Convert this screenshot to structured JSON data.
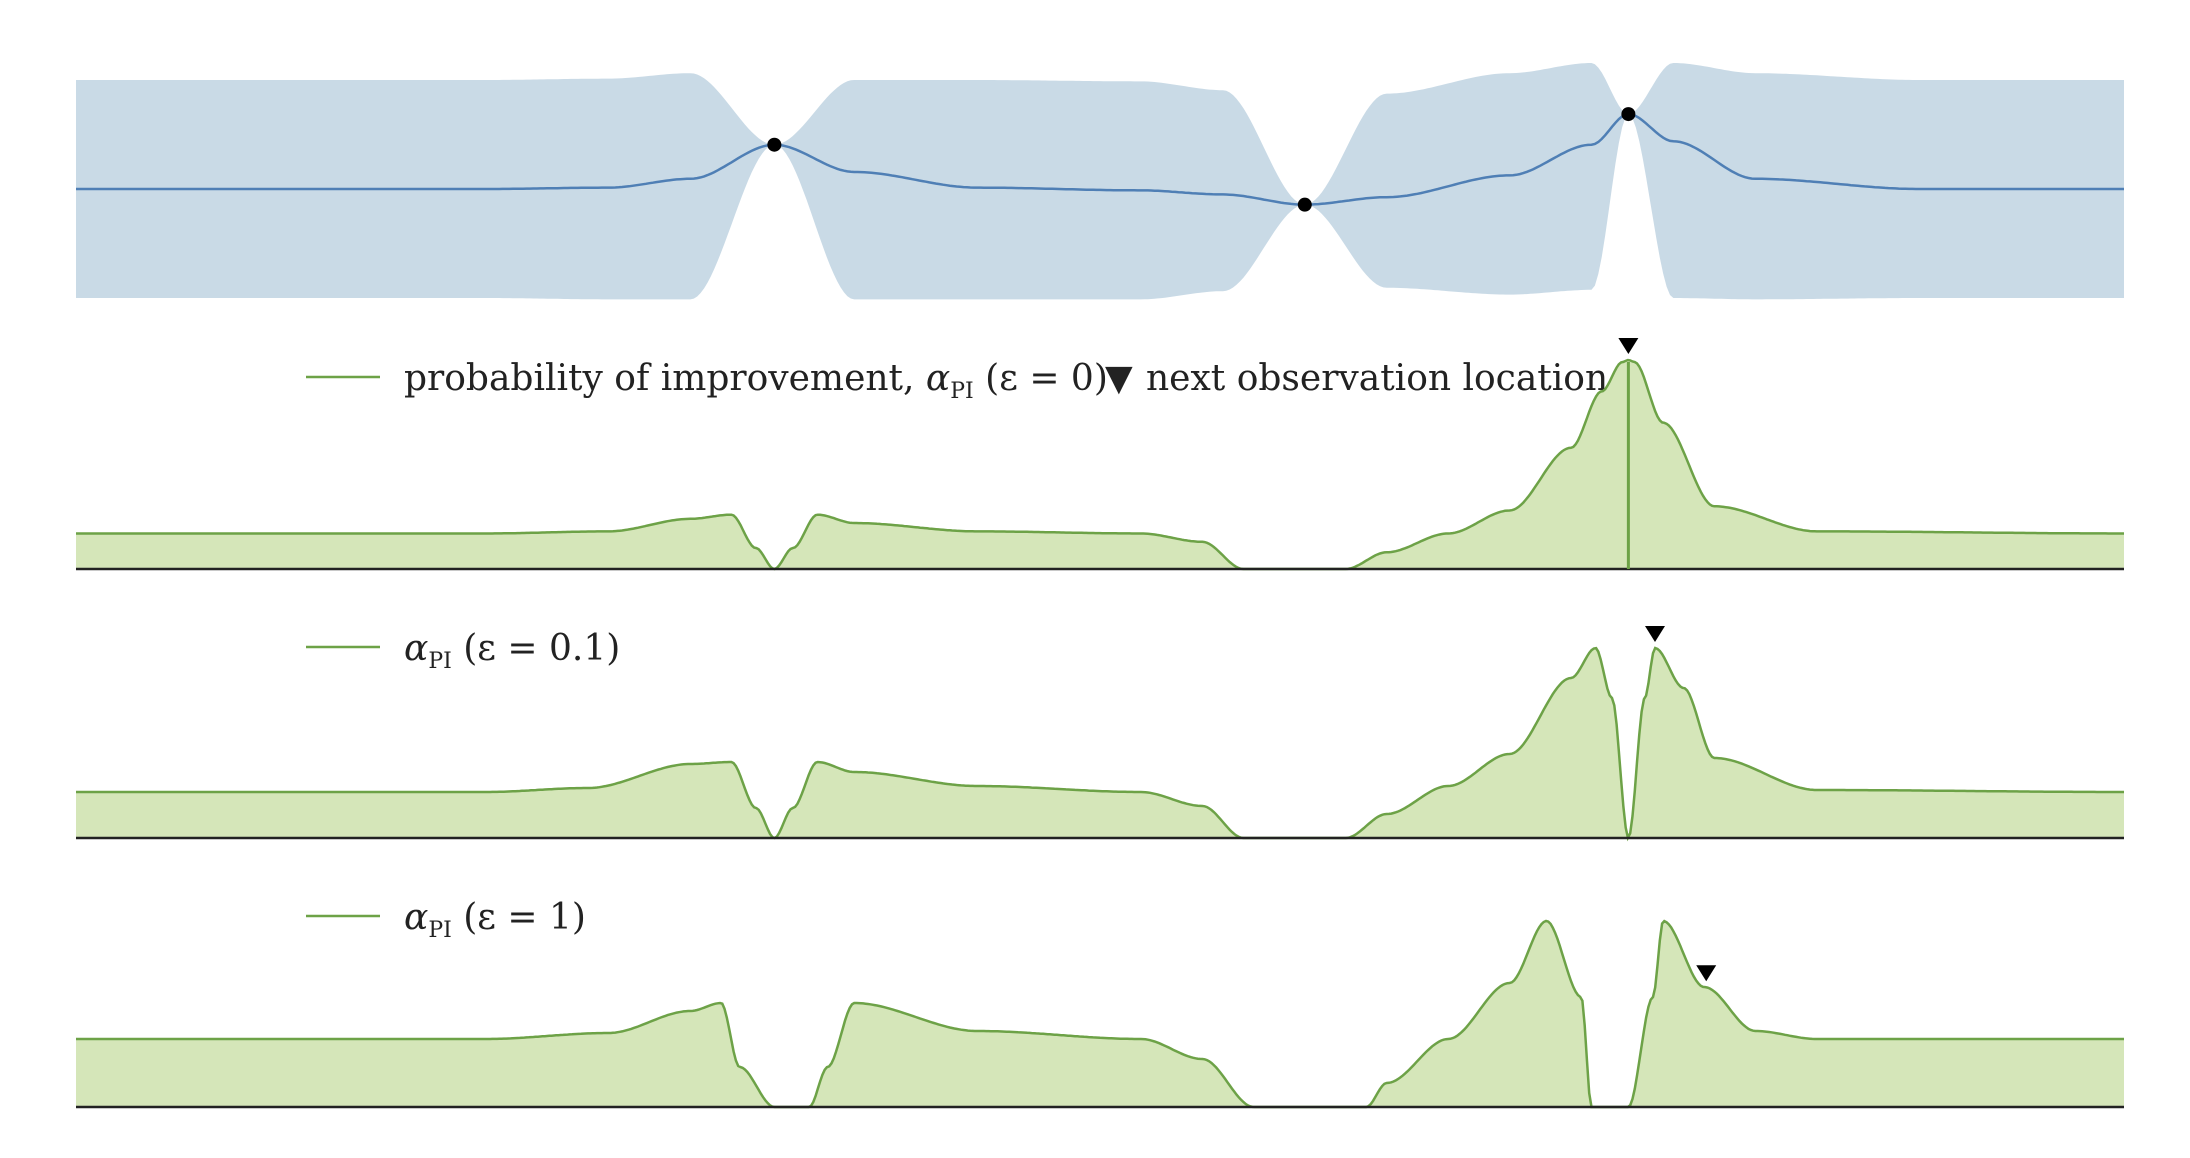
{
  "colors": {
    "gp_band": "#c9dae6",
    "gp_mean": "#4f7fb5",
    "observation": "#000000",
    "pi_fill": "#d5e6b9",
    "pi_line": "#6da247",
    "axis": "#222222",
    "marker": "#000000"
  },
  "chart_data": [
    {
      "type": "area",
      "panel": "gp-posterior",
      "xlim": [
        0,
        1
      ],
      "ylim": [
        -1.6,
        1.6
      ],
      "observations": [
        {
          "x": 0.341,
          "y": 0.65
        },
        {
          "x": 0.6,
          "y": -0.23
        },
        {
          "x": 0.758,
          "y": 1.1
        }
      ],
      "mean_x": [
        0,
        0.1,
        0.2,
        0.26,
        0.3,
        0.341,
        0.38,
        0.44,
        0.52,
        0.56,
        0.6,
        0.64,
        0.7,
        0.74,
        0.758,
        0.78,
        0.82,
        0.9,
        1.0
      ],
      "mean_y": [
        0,
        0,
        0,
        0.02,
        0.15,
        0.65,
        0.25,
        0.02,
        -0.02,
        -0.08,
        -0.23,
        -0.12,
        0.2,
        0.65,
        1.1,
        0.7,
        0.15,
        0.0,
        0
      ],
      "upper_y": [
        1.6,
        1.6,
        1.6,
        1.62,
        1.7,
        0.65,
        1.6,
        1.6,
        1.58,
        1.45,
        -0.23,
        1.4,
        1.7,
        1.85,
        1.1,
        1.85,
        1.7,
        1.6,
        1.6
      ],
      "lower_y": [
        -1.6,
        -1.6,
        -1.6,
        -1.62,
        -1.62,
        0.65,
        -1.62,
        -1.62,
        -1.62,
        -1.5,
        -0.23,
        -1.45,
        -1.55,
        -1.48,
        1.1,
        -1.6,
        -1.62,
        -1.6,
        -1.6
      ]
    },
    {
      "type": "area",
      "panel": "pi-eps-0",
      "series": [
        {
          "name": "probability of improvement",
          "epsilon": "0"
        }
      ],
      "xlim": [
        0,
        1
      ],
      "ylim": [
        0,
        1
      ],
      "x": [
        0,
        0.2,
        0.26,
        0.3,
        0.32,
        0.332,
        0.341,
        0.35,
        0.362,
        0.38,
        0.44,
        0.52,
        0.55,
        0.57,
        0.6,
        0.62,
        0.64,
        0.67,
        0.7,
        0.73,
        0.745,
        0.755,
        0.758,
        0.761,
        0.775,
        0.8,
        0.85,
        1.0
      ],
      "y": [
        0.17,
        0.17,
        0.18,
        0.24,
        0.26,
        0.1,
        0.0,
        0.1,
        0.26,
        0.22,
        0.18,
        0.17,
        0.13,
        0.0,
        0.0,
        0.0,
        0.08,
        0.17,
        0.28,
        0.58,
        0.85,
        0.99,
        1.0,
        0.99,
        0.7,
        0.3,
        0.18,
        0.17
      ],
      "next_observation": {
        "x": 0.758
      }
    },
    {
      "type": "area",
      "panel": "pi-eps-0.1",
      "series": [
        {
          "name": "α_PI",
          "epsilon": "0.1"
        }
      ],
      "xlim": [
        0,
        1
      ],
      "ylim": [
        0,
        1
      ],
      "x": [
        0,
        0.2,
        0.25,
        0.3,
        0.32,
        0.332,
        0.341,
        0.35,
        0.362,
        0.38,
        0.44,
        0.52,
        0.55,
        0.57,
        0.6,
        0.62,
        0.64,
        0.67,
        0.7,
        0.73,
        0.742,
        0.75,
        0.758,
        0.766,
        0.771,
        0.785,
        0.8,
        0.85,
        1.0
      ],
      "y": [
        0.23,
        0.23,
        0.25,
        0.37,
        0.38,
        0.15,
        0.0,
        0.15,
        0.38,
        0.33,
        0.26,
        0.23,
        0.16,
        0.0,
        0.0,
        0.0,
        0.12,
        0.26,
        0.42,
        0.8,
        0.95,
        0.7,
        0.0,
        0.7,
        0.95,
        0.75,
        0.4,
        0.24,
        0.23
      ],
      "next_observation": {
        "x": 0.771
      }
    },
    {
      "type": "area",
      "panel": "pi-eps-1",
      "series": [
        {
          "name": "α_PI",
          "epsilon": "1"
        }
      ],
      "xlim": [
        0,
        1
      ],
      "ylim": [
        0,
        1
      ],
      "x": [
        0,
        0.2,
        0.26,
        0.3,
        0.315,
        0.324,
        0.341,
        0.358,
        0.367,
        0.38,
        0.44,
        0.52,
        0.55,
        0.575,
        0.6,
        0.63,
        0.64,
        0.67,
        0.7,
        0.718,
        0.735,
        0.74,
        0.758,
        0.77,
        0.775,
        0.795,
        0.82,
        0.85,
        1.0
      ],
      "y": [
        0.34,
        0.34,
        0.37,
        0.48,
        0.52,
        0.2,
        0.0,
        0.0,
        0.2,
        0.52,
        0.38,
        0.34,
        0.24,
        0.0,
        0.0,
        0.0,
        0.12,
        0.34,
        0.62,
        0.93,
        0.55,
        0.0,
        0.0,
        0.55,
        0.93,
        0.6,
        0.38,
        0.34,
        0.34
      ],
      "next_observation": {
        "x": 0.796
      }
    }
  ],
  "legend": {
    "pi0_label": "probability of improvement, ",
    "alpha": "α",
    "pi_sub": "PI",
    "eps0_value": " (ε = 0)",
    "eps01_value": " (ε = 0.1)",
    "eps1_value": " (ε = 1)",
    "marker_symbol": "▼",
    "next_label": "next observation location"
  }
}
